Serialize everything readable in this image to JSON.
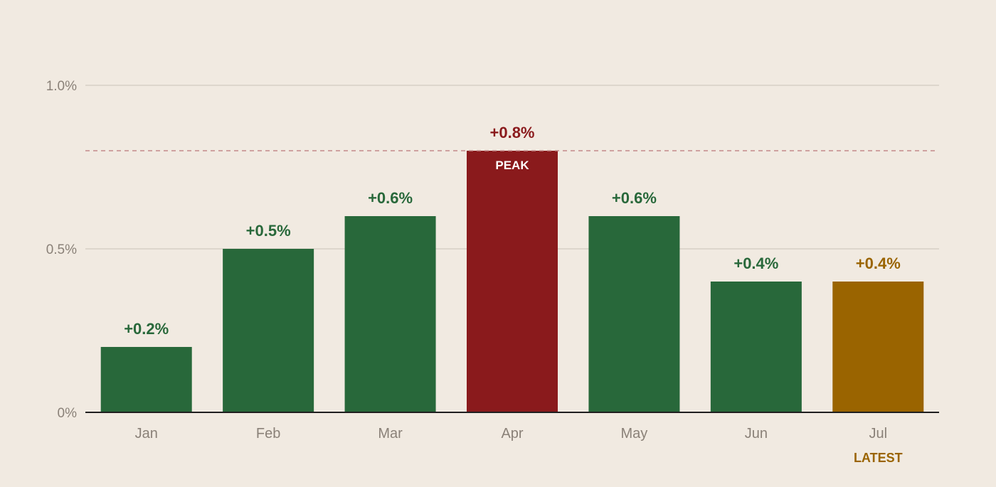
{
  "chart_data": {
    "type": "bar",
    "categories": [
      "Jan",
      "Feb",
      "Mar",
      "Apr",
      "May",
      "Jun",
      "Jul"
    ],
    "values": [
      0.2,
      0.5,
      0.6,
      0.8,
      0.6,
      0.4,
      0.4
    ],
    "value_labels": [
      "+0.2%",
      "+0.5%",
      "+0.6%",
      "+0.8%",
      "+0.6%",
      "+0.4%",
      "+0.4%"
    ],
    "title": "",
    "xlabel": "",
    "ylabel": "",
    "ylim": [
      0,
      1.0
    ],
    "yticks": [
      {
        "value": 0,
        "label": "0%"
      },
      {
        "value": 0.5,
        "label": "0.5%"
      },
      {
        "value": 1.0,
        "label": "1.0%"
      }
    ],
    "grid": true,
    "peak": {
      "category": "Apr",
      "value": 0.8,
      "label": "PEAK"
    },
    "latest": {
      "category": "Jul",
      "label": "LATEST"
    }
  },
  "colors": {
    "background": "#f1eae1",
    "bar_default": "#28683a",
    "bar_peak": "#8a1a1c",
    "bar_latest": "#9a6400",
    "label_default": "#28683a",
    "label_peak": "#8a1a1c",
    "label_latest": "#9a6400",
    "gridline": "#ddd6cc",
    "baseline": "#1f1f1f",
    "peak_line": "#c48a8a",
    "tick_text": "#8a8178"
  }
}
